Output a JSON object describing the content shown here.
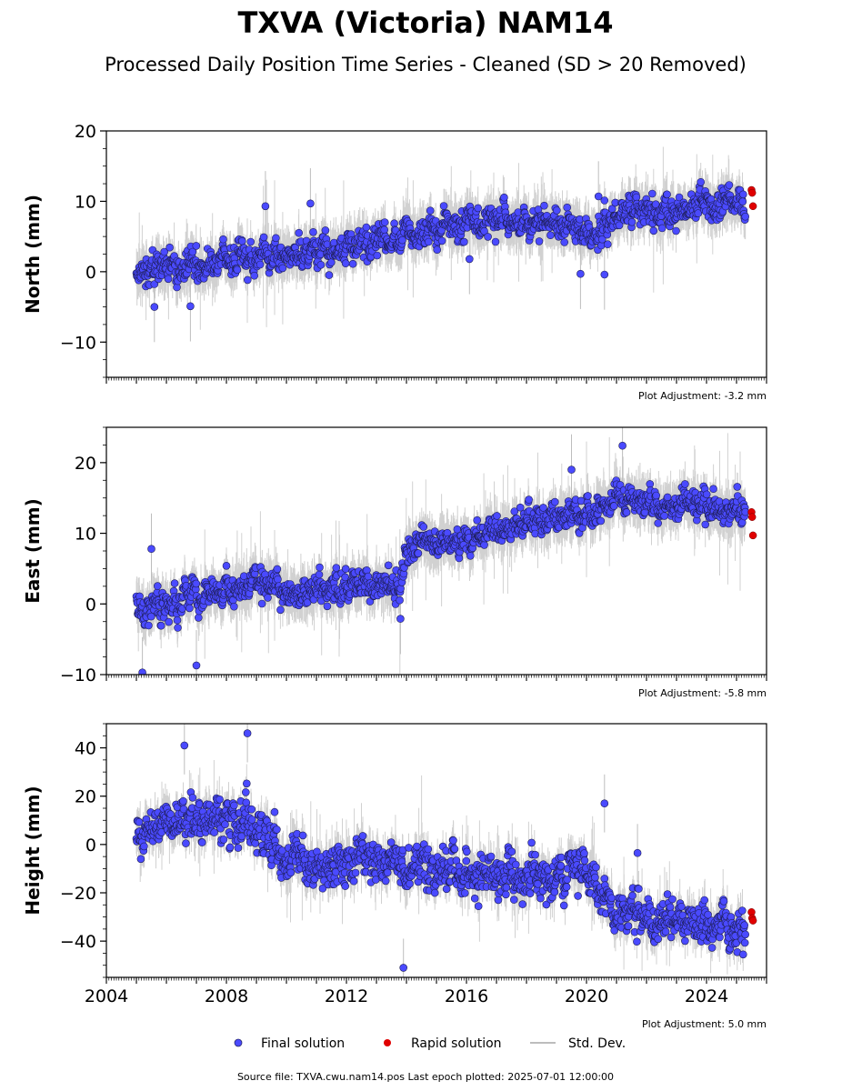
{
  "figure": {
    "title": "TXVA (Victoria) NAM14",
    "subtitle": "Processed Daily Position Time Series - Cleaned (SD > 20 Removed)",
    "source_note": "Source file: TXVA.cwu.nam14.pos  Last epoch plotted: 2025-07-01 12:00:00",
    "colors": {
      "final": "#4a4aff",
      "rapid": "#e00000",
      "std": "#bdbdbd"
    }
  },
  "legend": {
    "final_label": "Final solution",
    "rapid_label": "Rapid solution",
    "std_label": "Std. Dev."
  },
  "chart_data": [
    {
      "type": "scatter",
      "component": "north",
      "ylabel": "North (mm)",
      "ylim": [
        -15,
        20
      ],
      "yticks": [
        -10,
        0,
        10,
        20
      ],
      "xlim": [
        2004,
        2026
      ],
      "adjustment": "Plot Adjustment: -3.2 mm",
      "trend": [
        [
          2005.0,
          0.0
        ],
        [
          2012.0,
          3.5
        ],
        [
          2016.5,
          7.5
        ],
        [
          2018.5,
          7.0
        ],
        [
          2020.5,
          5.0
        ],
        [
          2021.0,
          9.0
        ],
        [
          2023.0,
          8.5
        ],
        [
          2025.3,
          10.0
        ]
      ],
      "scatter_sd": 1.5,
      "std_dev_typical": 2.5,
      "outliers": [
        [
          2005.6,
          -5.0
        ],
        [
          2006.8,
          -4.9
        ],
        [
          2009.3,
          9.3
        ],
        [
          2010.8,
          9.7
        ],
        [
          2016.1,
          1.8
        ],
        [
          2019.8,
          -0.3
        ],
        [
          2020.4,
          10.7
        ],
        [
          2020.6,
          -0.4
        ]
      ],
      "rapid": [
        [
          2025.5,
          11.6
        ],
        [
          2025.52,
          11.2
        ],
        [
          2025.55,
          9.3
        ]
      ]
    },
    {
      "type": "scatter",
      "component": "east",
      "ylabel": "East (mm)",
      "ylim": [
        -10,
        25
      ],
      "yticks": [
        -10,
        0,
        10,
        20
      ],
      "xlim": [
        2004,
        2026
      ],
      "adjustment": "Plot Adjustment: -5.8 mm",
      "trend": [
        [
          2005.0,
          -0.5
        ],
        [
          2007.0,
          0.5
        ],
        [
          2009.0,
          3.0
        ],
        [
          2010.5,
          1.5
        ],
        [
          2012.5,
          3.5
        ],
        [
          2013.8,
          1.5
        ],
        [
          2014.0,
          8.0
        ],
        [
          2016.0,
          9.0
        ],
        [
          2018.0,
          11.5
        ],
        [
          2020.0,
          12.5
        ],
        [
          2021.0,
          16.0
        ],
        [
          2022.0,
          13.5
        ],
        [
          2023.0,
          14.0
        ],
        [
          2025.3,
          13.0
        ]
      ],
      "scatter_sd": 1.4,
      "std_dev_typical": 2.5,
      "outliers": [
        [
          2005.5,
          7.8
        ],
        [
          2005.2,
          -9.7
        ],
        [
          2007.0,
          -8.7
        ],
        [
          2013.8,
          -2.1
        ],
        [
          2019.5,
          19.0
        ],
        [
          2021.2,
          22.4
        ]
      ],
      "rapid": [
        [
          2025.5,
          13.0
        ],
        [
          2025.52,
          12.3
        ],
        [
          2025.55,
          9.7
        ]
      ]
    },
    {
      "type": "scatter",
      "component": "height",
      "ylabel": "Height (mm)",
      "ylim": [
        -55,
        50
      ],
      "yticks": [
        -40,
        -20,
        0,
        20,
        40
      ],
      "xlim": [
        2004,
        2026
      ],
      "xticks": [
        2004,
        2008,
        2012,
        2016,
        2020,
        2024
      ],
      "adjustment": "Plot Adjustment: 5.0 mm",
      "trend": [
        [
          2005.0,
          5.0
        ],
        [
          2006.5,
          12.0
        ],
        [
          2008.5,
          10.0
        ],
        [
          2009.5,
          0.0
        ],
        [
          2010.0,
          -10.0
        ],
        [
          2013.0,
          -7.0
        ],
        [
          2016.0,
          -12.0
        ],
        [
          2018.0,
          -15.0
        ],
        [
          2020.0,
          -12.0
        ],
        [
          2021.0,
          -30.0
        ],
        [
          2025.3,
          -35.0
        ]
      ],
      "scatter_sd": 6.0,
      "std_dev_typical": 6.0,
      "outliers": [
        [
          2008.7,
          46.0
        ],
        [
          2006.6,
          41.0
        ],
        [
          2013.9,
          -51.0
        ],
        [
          2020.6,
          17.0
        ],
        [
          2021.7,
          -3.5
        ]
      ],
      "rapid": [
        [
          2025.5,
          -28.0
        ],
        [
          2025.52,
          -30.5
        ],
        [
          2025.55,
          -31.5
        ]
      ]
    }
  ]
}
